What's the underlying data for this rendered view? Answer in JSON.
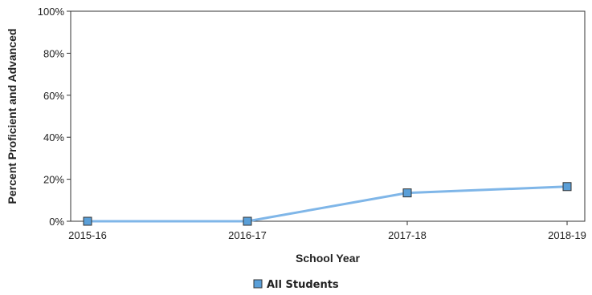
{
  "chart_data": {
    "type": "line",
    "title": "",
    "xlabel": "School Year",
    "ylabel": "Percent Proficient and Advanced",
    "categories": [
      "2015-16",
      "2016-17",
      "2017-18",
      "2018-19"
    ],
    "series": [
      {
        "name": "All Students",
        "values": [
          0,
          0,
          13.5,
          16.5
        ],
        "color": "#5a9fd8"
      }
    ],
    "ylim": [
      0,
      100
    ],
    "yticks": [
      0,
      20,
      40,
      60,
      80,
      100
    ],
    "ytick_labels": [
      "0%",
      "20%",
      "40%",
      "60%",
      "80%",
      "100%"
    ],
    "grid": false,
    "legend_position": "bottom-center"
  }
}
